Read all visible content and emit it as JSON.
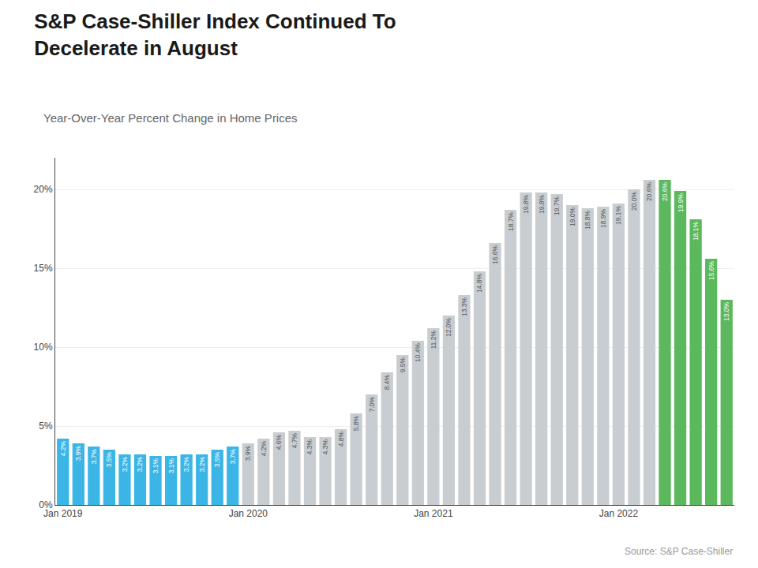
{
  "chart_data": {
    "type": "bar",
    "title": "S&P Case-Shiller Index Continued To\nDecelerate in August",
    "subtitle": "Year-Over-Year Percent Change in Home Prices",
    "annotations": [
      "Source: S&P Case-Shiller"
    ],
    "categories": [
      "Jan 2019",
      null,
      null,
      null,
      null,
      null,
      null,
      null,
      null,
      null,
      null,
      null,
      "Jan 2020",
      null,
      null,
      null,
      null,
      null,
      null,
      null,
      null,
      null,
      null,
      null,
      "Jan 2021",
      null,
      null,
      null,
      null,
      null,
      null,
      null,
      null,
      null,
      null,
      null,
      "Jan 2022",
      null,
      null,
      null,
      null,
      null,
      null,
      null
    ],
    "values": [
      4.2,
      3.9,
      3.7,
      3.5,
      3.2,
      3.2,
      3.1,
      3.1,
      3.2,
      3.2,
      3.5,
      3.7,
      3.9,
      4.2,
      4.6,
      4.7,
      4.3,
      4.3,
      4.8,
      5.8,
      7.0,
      8.4,
      9.5,
      10.4,
      11.2,
      12.0,
      13.3,
      14.8,
      16.6,
      18.7,
      19.8,
      19.8,
      19.7,
      19.0,
      18.8,
      18.9,
      19.1,
      20.0,
      20.6,
      20.6,
      19.9,
      18.1,
      15.6,
      13.0
    ],
    "value_labels": [
      "4.2%",
      "3.9%",
      "3.7%",
      "3.5%",
      "3.2%",
      "3.2%",
      "3.1%",
      "3.1%",
      "3.2%",
      "3.2%",
      "3.5%",
      "3.7%",
      "3.9%",
      "4.2%",
      "4.6%",
      "4.7%",
      "4.3%",
      "4.3%",
      "4.8%",
      "5.8%",
      "7.0%",
      "8.4%",
      "9.5%",
      "10.4%",
      "11.2%",
      "12.0%",
      "13.3%",
      "14.8%",
      "16.6%",
      "18.7%",
      "19.8%",
      "19.8%",
      "19.7%",
      "19.0%",
      "18.8%",
      "18.9%",
      "19.1%",
      "20.0%",
      "20.6%",
      "20.6%",
      "19.9%",
      "18.1%",
      "15.6%",
      "13.0%"
    ],
    "colors": [
      "#3ab5e6",
      "#3ab5e6",
      "#3ab5e6",
      "#3ab5e6",
      "#3ab5e6",
      "#3ab5e6",
      "#3ab5e6",
      "#3ab5e6",
      "#3ab5e6",
      "#3ab5e6",
      "#3ab5e6",
      "#3ab5e6",
      "#c8cdd1",
      "#c8cdd1",
      "#c8cdd1",
      "#c8cdd1",
      "#c8cdd1",
      "#c8cdd1",
      "#c8cdd1",
      "#c8cdd1",
      "#c8cdd1",
      "#c8cdd1",
      "#c8cdd1",
      "#c8cdd1",
      "#c8cdd1",
      "#c8cdd1",
      "#c8cdd1",
      "#c8cdd1",
      "#c8cdd1",
      "#c8cdd1",
      "#c8cdd1",
      "#c8cdd1",
      "#c8cdd1",
      "#c8cdd1",
      "#c8cdd1",
      "#c8cdd1",
      "#c8cdd1",
      "#c8cdd1",
      "#c8cdd1",
      "#5cb85c",
      "#5cb85c",
      "#5cb85c",
      "#5cb85c",
      "#5cb85c"
    ],
    "ylim": [
      0,
      22
    ],
    "yticks": [
      {
        "value": 0,
        "label": "0%"
      },
      {
        "value": 5,
        "label": "5%"
      },
      {
        "value": 10,
        "label": "10%"
      },
      {
        "value": 15,
        "label": "15%"
      },
      {
        "value": 20,
        "label": "20%"
      }
    ],
    "grid": true,
    "data_labels": true
  }
}
